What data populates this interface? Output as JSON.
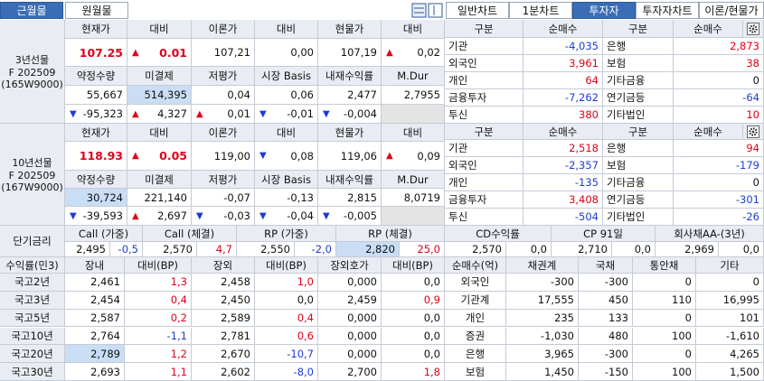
{
  "tabs_left": [
    "근월물",
    "원월물"
  ],
  "tabs_left_active": 0,
  "tabs_right": [
    "일반차트",
    "1분차트",
    "투자자",
    "투자자차트",
    "이론/현물가"
  ],
  "tabs_right_active": 2,
  "futures": [
    {
      "label": [
        "3년선물",
        "F 202509",
        "(165W9000)"
      ],
      "header1": [
        "현재가",
        "대비",
        "이론가",
        "대비",
        "현물가",
        "대비"
      ],
      "row1": [
        {
          "value": "107.25",
          "bold": true,
          "trend": "up"
        },
        {
          "arrow": "▲",
          "value": "0.01",
          "bold": true
        },
        {
          "value": "107,21"
        },
        {
          "value": "0,00"
        },
        {
          "value": "107,19"
        },
        {
          "arrow": "▲",
          "value": "0,02"
        }
      ],
      "header2": [
        "약정수량",
        "미결제",
        "저평가",
        "시장 Basis",
        "내재수익률",
        "M.Dur"
      ],
      "row2": [
        {
          "value": "55,667"
        },
        {
          "value": "514,395",
          "highlight": true
        },
        {
          "value": "0,04"
        },
        {
          "value": "0,06"
        },
        {
          "value": "2,477"
        },
        {
          "value": "2,7955"
        }
      ],
      "row3": [
        {
          "arrow": "▼",
          "value": "-95,323"
        },
        {
          "arrow": "▲",
          "value": "4,327"
        },
        {
          "arrow": "▲",
          "value": "0,01"
        },
        {
          "arrow": "▼",
          "value": "-0,01"
        },
        {
          "arrow": "▼",
          "value": "-0,004"
        },
        null
      ]
    },
    {
      "label": [
        "10년선물",
        "F 202509",
        "(167W9000)"
      ],
      "header1": [
        "현재가",
        "대비",
        "이론가",
        "대비",
        "현물가",
        "대비"
      ],
      "row1": [
        {
          "value": "118.93",
          "bold": true,
          "trend": "up"
        },
        {
          "arrow": "▲",
          "value": "0.05",
          "bold": true
        },
        {
          "value": "119,00"
        },
        {
          "arrow": "▼",
          "value": "0,08"
        },
        {
          "value": "119,06"
        },
        {
          "arrow": "▲",
          "value": "0,09"
        }
      ],
      "header2": [
        "약정수량",
        "미결제",
        "저평가",
        "시장 Basis",
        "내재수익률",
        "M.Dur"
      ],
      "row2": [
        {
          "value": "30,724",
          "highlight": true
        },
        {
          "value": "221,140"
        },
        {
          "value": "-0,07"
        },
        {
          "value": "-0,13"
        },
        {
          "value": "2,815"
        },
        {
          "value": "8,0719"
        }
      ],
      "row3": [
        {
          "arrow": "▼",
          "value": "-39,593"
        },
        {
          "arrow": "▲",
          "value": "2,697"
        },
        {
          "arrow": "▼",
          "value": "-0,03"
        },
        {
          "arrow": "▼",
          "value": "-0,04"
        },
        {
          "arrow": "▼",
          "value": "-0,005"
        },
        null
      ]
    }
  ],
  "investors": [
    {
      "header": [
        "구분",
        "순매수",
        "구분",
        "순매수"
      ],
      "rows": [
        [
          "기관",
          "-4,035",
          "은행",
          "2,873"
        ],
        [
          "외국인",
          "3,961",
          "보험",
          "38"
        ],
        [
          "개인",
          "64",
          "기타금융",
          "0"
        ],
        [
          "금융투자",
          "-7,262",
          "연기금등",
          "-64"
        ],
        [
          "투신",
          "380",
          "기타법인",
          "10"
        ]
      ]
    },
    {
      "header": [
        "구분",
        "순매수",
        "구분",
        "순매수"
      ],
      "rows": [
        [
          "기관",
          "2,518",
          "은행",
          "94"
        ],
        [
          "외국인",
          "-2,357",
          "보험",
          "-179"
        ],
        [
          "개인",
          "-135",
          "기타금융",
          "0"
        ],
        [
          "금융투자",
          "3,408",
          "연기금등",
          "-301"
        ],
        [
          "투신",
          "-504",
          "기타법인",
          "-26"
        ]
      ]
    }
  ],
  "short_rates": {
    "label": "단기금리",
    "groups": [
      {
        "name": "Call (가중)",
        "value": "2,495",
        "change": "-0,5"
      },
      {
        "name": "Call (체결)",
        "value": "2,570",
        "change": "4,7"
      },
      {
        "name": "RP (가중)",
        "value": "2,550",
        "change": "-2,0"
      },
      {
        "name": "RP (체결)",
        "value": "2,820",
        "change": "25,0",
        "highlight": true
      },
      {
        "name": "CD수익률",
        "value": "2,570",
        "change": "0,0"
      },
      {
        "name": "CP 91일",
        "value": "2,710",
        "change": "0,0"
      },
      {
        "name": "회사채AA-(3년)",
        "value": "2,969",
        "change": "0,0"
      }
    ]
  },
  "yields": {
    "header": [
      "수익률(민3)",
      "장내",
      "대비(BP)",
      "장외",
      "대비(BP)",
      "장외호가",
      "대비(BP)"
    ],
    "rows": [
      [
        "국고2년",
        "2,461",
        "1,3",
        "2,458",
        "1,0",
        "0,000",
        "0,0"
      ],
      [
        "국고3년",
        "2,454",
        "0,4",
        "2,450",
        "0,0",
        "2,459",
        "0,9"
      ],
      [
        "국고5년",
        "2,587",
        "0,2",
        "2,589",
        "0,4",
        "0,000",
        "0,0"
      ],
      [
        "국고10년",
        "2,764",
        "-1,1",
        "2,781",
        "0,6",
        "0,000",
        "0,0"
      ],
      [
        "국고20년",
        "2,789",
        "1,2",
        "2,670",
        "-10,7",
        "0,000",
        "0,0"
      ],
      [
        "국고30년",
        "2,693",
        "1,1",
        "2,602",
        "-8,0",
        "2,700",
        "1,8"
      ]
    ],
    "highlight": [
      [
        4,
        1
      ]
    ]
  },
  "net_buy": {
    "header": [
      "순매수(억)",
      "채권계",
      "국채",
      "통안채",
      "기타"
    ],
    "rows": [
      [
        "외국인",
        "-300",
        "-300",
        "0",
        "0"
      ],
      [
        "기관계",
        "17,555",
        "450",
        "110",
        "16,995"
      ],
      [
        "개인",
        "235",
        "133",
        "0",
        "101"
      ],
      [
        "증권",
        "-1,030",
        "480",
        "100",
        "-1,610"
      ],
      [
        "은행",
        "3,965",
        "-300",
        "0",
        "4,265"
      ],
      [
        "보험",
        "1,450",
        "-150",
        "100",
        "1,500"
      ]
    ]
  }
}
